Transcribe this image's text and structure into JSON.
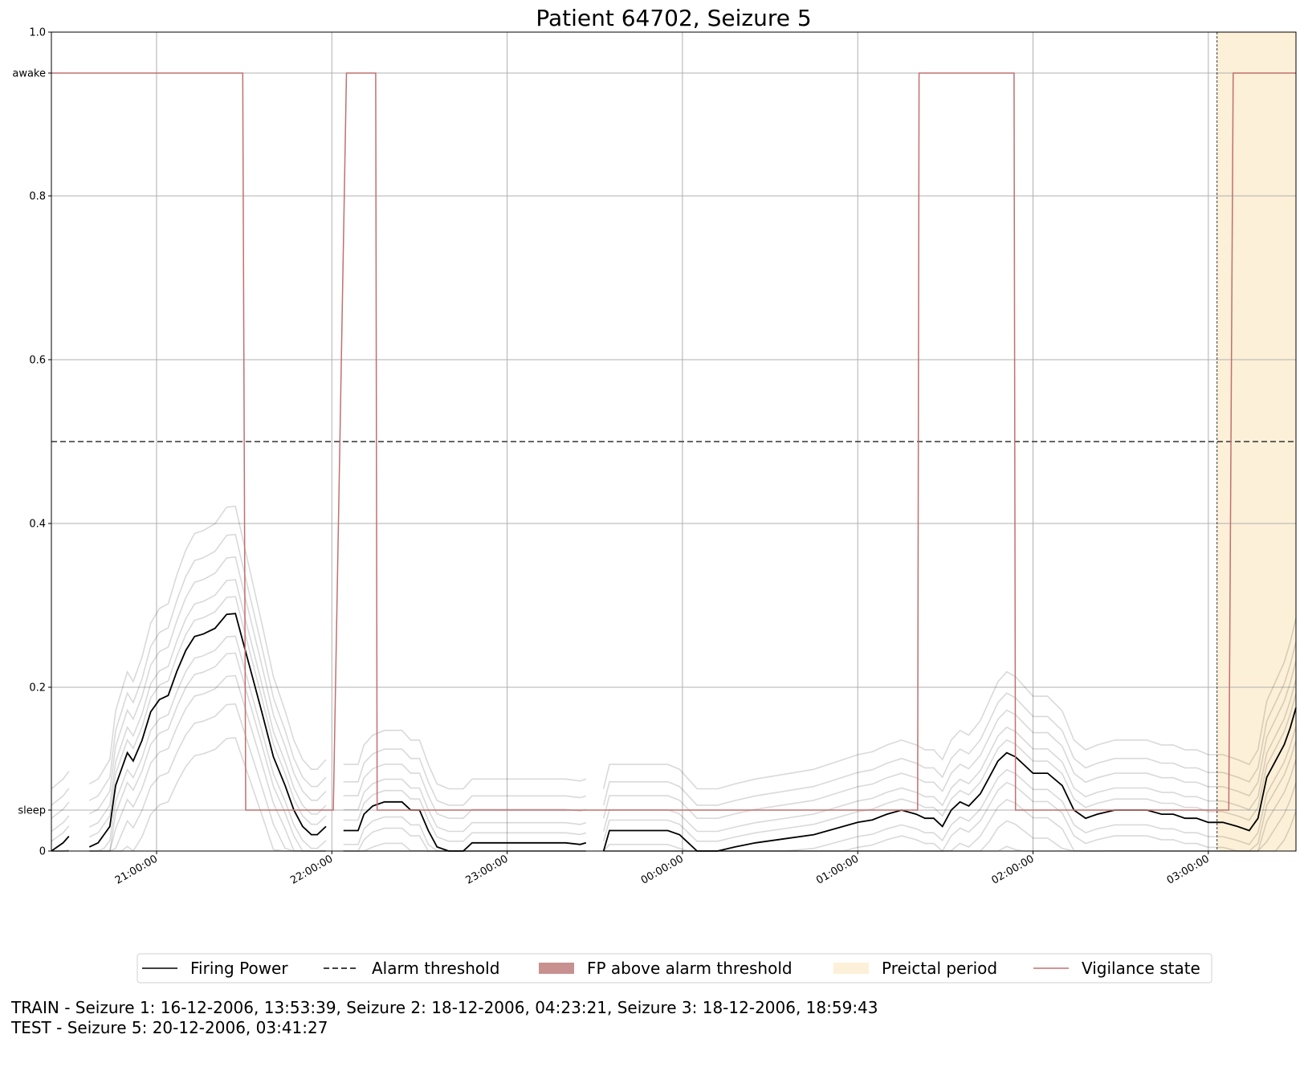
{
  "chart_data": {
    "type": "line",
    "title": "Patient 64702, Seizure 5",
    "xlabel": "",
    "ylabel": "",
    "x_range": [
      "20:24:00",
      "03:30:00"
    ],
    "ylim": [
      0,
      1.0
    ],
    "grid": true,
    "legend_position": "bottom-center",
    "x_ticks": [
      "21:00:00",
      "22:00:00",
      "23:00:00",
      "00:00:00",
      "01:00:00",
      "02:00:00",
      "03:00:00"
    ],
    "y_ticks": [
      {
        "value": 0,
        "label": "0"
      },
      {
        "value": 0.05,
        "label": "sleep"
      },
      {
        "value": 0.2,
        "label": "0.2"
      },
      {
        "value": 0.4,
        "label": "0.4"
      },
      {
        "value": 0.6,
        "label": "0.6"
      },
      {
        "value": 0.8,
        "label": "0.8"
      },
      {
        "value": 0.95,
        "label": "awake"
      },
      {
        "value": 1.0,
        "label": "1.0"
      }
    ],
    "alarm_threshold": 0.5,
    "preictal_period": {
      "start": "03:03:00",
      "end": "03:30:00"
    },
    "seizure_onset_line": "03:03:00",
    "colors": {
      "firing_power": "#000000",
      "alarm_threshold": "#333333",
      "fp_above_threshold": "#c99090",
      "preictal": "#fdf0d8",
      "vigilance": "#c07070",
      "grid": "#b0b0b0"
    },
    "legend": [
      {
        "label": "Firing Power",
        "symbol": "solid-line",
        "color": "#000000"
      },
      {
        "label": "Alarm threshold",
        "symbol": "dashed-line",
        "color": "#000000"
      },
      {
        "label": "FP above alarm threshold",
        "symbol": "patch",
        "color": "#c99090"
      },
      {
        "label": "Preictal period",
        "symbol": "patch",
        "color": "#fdf0d8"
      },
      {
        "label": "Vigilance state",
        "symbol": "solid-line",
        "color": "#c07070"
      }
    ],
    "vigilance_state": [
      {
        "t": "20:24:00",
        "v": 0.95
      },
      {
        "t": "21:29:30",
        "v": 0.95
      },
      {
        "t": "21:30:30",
        "v": 0.05
      },
      {
        "t": "22:00:30",
        "v": 0.05
      },
      {
        "t": "22:05:00",
        "v": 0.95
      },
      {
        "t": "22:15:00",
        "v": 0.95
      },
      {
        "t": "22:15:30",
        "v": 0.05
      },
      {
        "t": "01:20:30",
        "v": 0.05
      },
      {
        "t": "01:21:00",
        "v": 0.95
      },
      {
        "t": "01:53:30",
        "v": 0.95
      },
      {
        "t": "01:54:00",
        "v": 0.05
      },
      {
        "t": "03:07:00",
        "v": 0.05
      },
      {
        "t": "03:08:30",
        "v": 0.95
      },
      {
        "t": "03:30:00",
        "v": 0.95
      }
    ],
    "firing_power_segments": [
      [
        {
          "t": "20:24:00",
          "v": 0.0
        },
        {
          "t": "20:26:00",
          "v": 0.005
        },
        {
          "t": "20:28:00",
          "v": 0.01
        },
        {
          "t": "20:30:00",
          "v": 0.018
        }
      ],
      [
        {
          "t": "20:37:00",
          "v": 0.005
        },
        {
          "t": "20:40:00",
          "v": 0.01
        },
        {
          "t": "20:42:00",
          "v": 0.02
        },
        {
          "t": "20:44:00",
          "v": 0.03
        },
        {
          "t": "20:46:00",
          "v": 0.08
        },
        {
          "t": "20:48:00",
          "v": 0.1
        },
        {
          "t": "20:50:00",
          "v": 0.12
        },
        {
          "t": "20:52:00",
          "v": 0.11
        },
        {
          "t": "20:55:00",
          "v": 0.135
        },
        {
          "t": "20:58:00",
          "v": 0.17
        },
        {
          "t": "21:01:00",
          "v": 0.185
        },
        {
          "t": "21:04:00",
          "v": 0.19
        },
        {
          "t": "21:07:00",
          "v": 0.22
        },
        {
          "t": "21:10:00",
          "v": 0.245
        },
        {
          "t": "21:13:00",
          "v": 0.262
        },
        {
          "t": "21:16:00",
          "v": 0.265
        },
        {
          "t": "21:20:00",
          "v": 0.272
        },
        {
          "t": "21:24:00",
          "v": 0.289
        },
        {
          "t": "21:27:00",
          "v": 0.29
        },
        {
          "t": "21:30:00",
          "v": 0.25
        },
        {
          "t": "21:33:00",
          "v": 0.21
        },
        {
          "t": "21:36:00",
          "v": 0.17
        },
        {
          "t": "21:40:00",
          "v": 0.115
        },
        {
          "t": "21:44:00",
          "v": 0.08
        },
        {
          "t": "21:47:00",
          "v": 0.05
        },
        {
          "t": "21:50:00",
          "v": 0.03
        },
        {
          "t": "21:53:00",
          "v": 0.02
        },
        {
          "t": "21:55:00",
          "v": 0.02
        },
        {
          "t": "21:58:00",
          "v": 0.03
        }
      ],
      [
        {
          "t": "22:04:00",
          "v": 0.025
        },
        {
          "t": "22:06:00",
          "v": 0.025
        },
        {
          "t": "22:09:00",
          "v": 0.025
        },
        {
          "t": "22:11:00",
          "v": 0.045
        },
        {
          "t": "22:14:00",
          "v": 0.055
        },
        {
          "t": "22:18:00",
          "v": 0.06
        },
        {
          "t": "22:24:00",
          "v": 0.06
        },
        {
          "t": "22:27:00",
          "v": 0.05
        },
        {
          "t": "22:30:00",
          "v": 0.05
        },
        {
          "t": "22:33:00",
          "v": 0.025
        },
        {
          "t": "22:36:00",
          "v": 0.005
        },
        {
          "t": "22:40:00",
          "v": 0.0
        },
        {
          "t": "22:45:00",
          "v": 0.0
        },
        {
          "t": "22:48:00",
          "v": 0.01
        },
        {
          "t": "23:00:00",
          "v": 0.01
        },
        {
          "t": "23:20:00",
          "v": 0.01
        },
        {
          "t": "23:25:00",
          "v": 0.008
        },
        {
          "t": "23:27:00",
          "v": 0.01
        }
      ],
      [
        {
          "t": "23:33:00",
          "v": 0.0
        },
        {
          "t": "23:35:00",
          "v": 0.025
        },
        {
          "t": "23:45:00",
          "v": 0.025
        },
        {
          "t": "23:55:00",
          "v": 0.025
        },
        {
          "t": "23:59:00",
          "v": 0.02
        },
        {
          "t": "00:02:00",
          "v": 0.01
        },
        {
          "t": "00:05:00",
          "v": 0.0
        },
        {
          "t": "00:12:00",
          "v": 0.0
        },
        {
          "t": "00:18:00",
          "v": 0.005
        },
        {
          "t": "00:25:00",
          "v": 0.01
        },
        {
          "t": "00:35:00",
          "v": 0.015
        },
        {
          "t": "00:45:00",
          "v": 0.02
        },
        {
          "t": "00:55:00",
          "v": 0.03
        },
        {
          "t": "01:00:00",
          "v": 0.035
        },
        {
          "t": "01:05:00",
          "v": 0.038
        },
        {
          "t": "01:10:00",
          "v": 0.045
        },
        {
          "t": "01:15:00",
          "v": 0.05
        },
        {
          "t": "01:20:00",
          "v": 0.045
        },
        {
          "t": "01:23:00",
          "v": 0.04
        },
        {
          "t": "01:26:00",
          "v": 0.04
        },
        {
          "t": "01:29:00",
          "v": 0.03
        },
        {
          "t": "01:32:00",
          "v": 0.05
        },
        {
          "t": "01:35:00",
          "v": 0.06
        },
        {
          "t": "01:38:00",
          "v": 0.055
        },
        {
          "t": "01:42:00",
          "v": 0.07
        },
        {
          "t": "01:45:00",
          "v": 0.09
        },
        {
          "t": "01:48:00",
          "v": 0.11
        },
        {
          "t": "01:51:00",
          "v": 0.12
        },
        {
          "t": "01:54:00",
          "v": 0.115
        },
        {
          "t": "01:57:00",
          "v": 0.105
        },
        {
          "t": "02:00:00",
          "v": 0.095
        },
        {
          "t": "02:05:00",
          "v": 0.095
        },
        {
          "t": "02:10:00",
          "v": 0.08
        },
        {
          "t": "02:14:00",
          "v": 0.05
        },
        {
          "t": "02:18:00",
          "v": 0.04
        },
        {
          "t": "02:22:00",
          "v": 0.045
        },
        {
          "t": "02:28:00",
          "v": 0.05
        },
        {
          "t": "02:33:00",
          "v": 0.05
        },
        {
          "t": "02:39:00",
          "v": 0.05
        },
        {
          "t": "02:44:00",
          "v": 0.045
        },
        {
          "t": "02:48:00",
          "v": 0.045
        },
        {
          "t": "02:52:00",
          "v": 0.04
        },
        {
          "t": "02:56:00",
          "v": 0.04
        },
        {
          "t": "03:00:00",
          "v": 0.035
        },
        {
          "t": "03:05:00",
          "v": 0.035
        },
        {
          "t": "03:10:00",
          "v": 0.03
        },
        {
          "t": "03:14:00",
          "v": 0.025
        },
        {
          "t": "03:17:00",
          "v": 0.04
        },
        {
          "t": "03:20:00",
          "v": 0.09
        },
        {
          "t": "03:23:00",
          "v": 0.11
        },
        {
          "t": "03:26:00",
          "v": 0.13
        },
        {
          "t": "03:28:00",
          "v": 0.15
        },
        {
          "t": "03:30:00",
          "v": 0.175
        }
      ]
    ]
  },
  "footer": {
    "train_line": "TRAIN - Seizure 1: 16-12-2006, 13:53:39, Seizure 2: 18-12-2006, 04:23:21, Seizure 3: 18-12-2006, 18:59:43",
    "test_line": "TEST - Seizure 5: 20-12-2006, 03:41:27"
  }
}
